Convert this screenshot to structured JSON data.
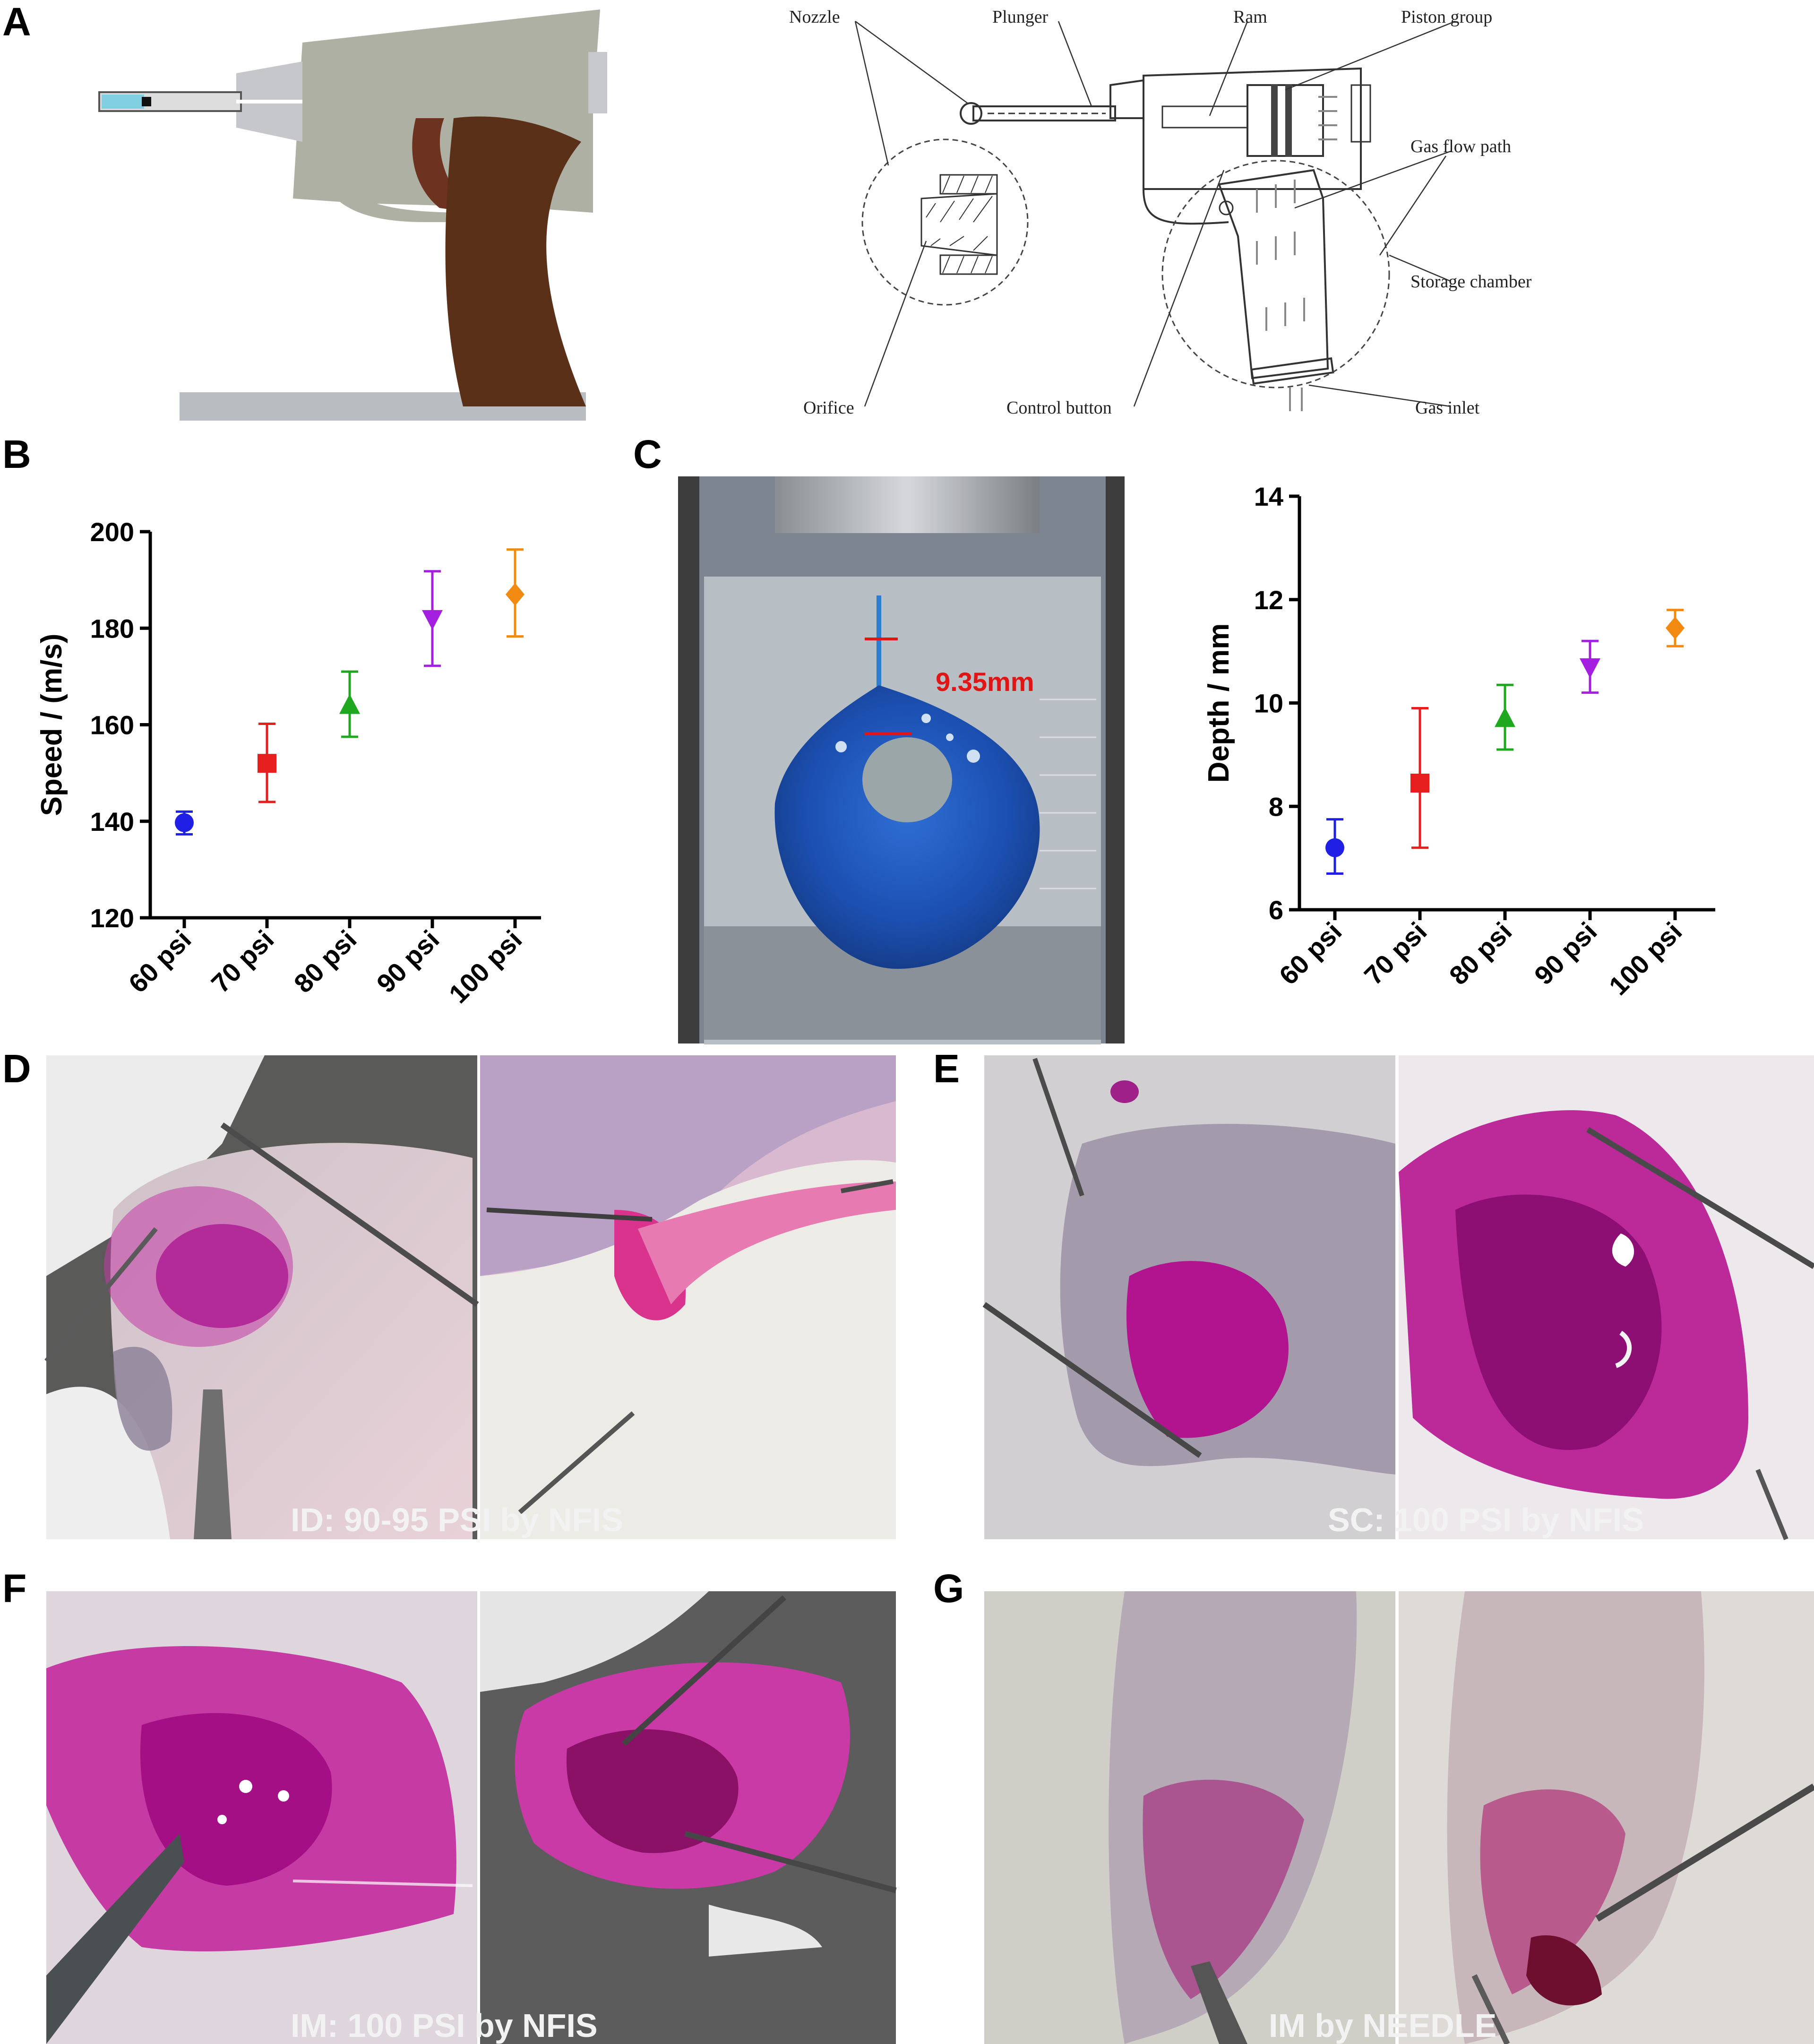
{
  "panel_labels": [
    "A",
    "B",
    "C",
    "D",
    "E",
    "F",
    "G"
  ],
  "diagram": {
    "callouts": {
      "nozzle": "Nozzle",
      "plunger": "Plunger",
      "ram": "Ram",
      "piston": "Piston group",
      "gasflow": "Gas flow path",
      "storage": "Storage chamber",
      "gasinlet": "Gas inlet",
      "control": "Control button",
      "orifice": "Orifice"
    }
  },
  "photo_c": {
    "measurement": "9.35mm"
  },
  "photos": {
    "d_caption": "ID: 90-95 PSI by NFIS",
    "e_caption": "SC: 100 PSI by NFIS",
    "f_caption": "IM: 100 PSI by NFIS",
    "g_caption": "IM by NEEDLE"
  },
  "chart_data": [
    {
      "type": "scatter",
      "panel": "B",
      "ylabel": "Speed / (m/s)",
      "ylim": [
        120,
        200
      ],
      "yticks": [
        120,
        140,
        160,
        180,
        200
      ],
      "categories": [
        "60 psi",
        "70 psi",
        "80 psi",
        "90 psi",
        "100 psi"
      ],
      "values": [
        139.7,
        152,
        164,
        182,
        187
      ],
      "err_low": [
        137.3,
        144,
        157.5,
        172.2,
        178.3
      ],
      "err_high": [
        142,
        160.2,
        171,
        191.8,
        196.3
      ],
      "colors": [
        "#1f1fe6",
        "#e61e1e",
        "#1fa81f",
        "#a51fe0",
        "#f28a12"
      ],
      "markers": [
        "circle",
        "square",
        "triangle-up",
        "triangle-down",
        "diamond"
      ]
    },
    {
      "type": "scatter",
      "panel": "C",
      "ylabel": "Depth / mm",
      "ylim": [
        6,
        14
      ],
      "yticks": [
        6,
        8,
        10,
        12,
        14
      ],
      "categories": [
        "60 psi",
        "70 psi",
        "80 psi",
        "90 psi",
        "100 psi"
      ],
      "values": [
        7.2,
        8.45,
        9.7,
        10.7,
        11.45
      ],
      "err_low": [
        6.7,
        7.2,
        9.1,
        10.2,
        11.1
      ],
      "err_high": [
        7.75,
        9.9,
        10.35,
        11.2,
        11.8
      ],
      "colors": [
        "#1f1fe6",
        "#e61e1e",
        "#1fa81f",
        "#a51fe0",
        "#f28a12"
      ],
      "markers": [
        "circle",
        "square",
        "triangle-up",
        "triangle-down",
        "diamond"
      ]
    }
  ]
}
